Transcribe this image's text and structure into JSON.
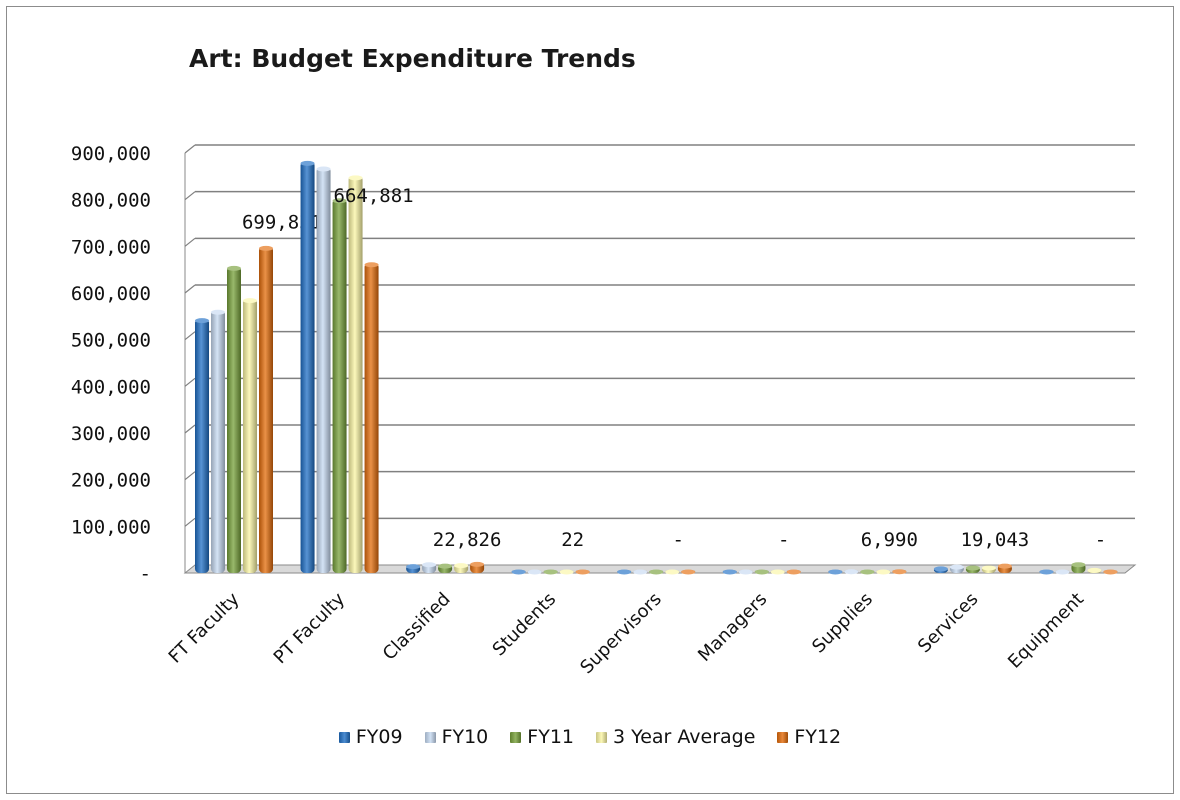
{
  "chart_data": {
    "type": "bar",
    "title": "Art: Budget Expenditure Trends",
    "categories": [
      "FT Faculty",
      "PT Faculty",
      "Classified",
      "Students",
      "Supervisors",
      "Managers",
      "Supplies",
      "Services",
      "Equipment"
    ],
    "series": [
      {
        "name": "FY09",
        "color": "#1f6fc5",
        "values": [
          545000,
          882000,
          18000,
          2000,
          1000,
          1000,
          6000,
          13000,
          3000
        ]
      },
      {
        "name": "FY10",
        "color": "#c6d9f1",
        "values": [
          563000,
          870000,
          22000,
          2000,
          1000,
          1000,
          7000,
          17000,
          4000
        ]
      },
      {
        "name": "FY11",
        "color": "#77a03a",
        "values": [
          657000,
          802000,
          19000,
          1000,
          1000,
          1000,
          6000,
          15000,
          22000
        ]
      },
      {
        "name": "3 Year Average",
        "color": "#fbf6a4",
        "values": [
          588000,
          851000,
          20000,
          2000,
          1000,
          1000,
          6000,
          15000,
          10000
        ]
      },
      {
        "name": "FY12",
        "color": "#e36c0a",
        "values": [
          699831,
          664881,
          22826,
          22,
          0,
          0,
          6990,
          19043,
          0
        ]
      }
    ],
    "data_labels": [
      "699,831",
      "664,881",
      "22,826",
      "22",
      "-",
      "-",
      "6,990",
      "19,043",
      "-"
    ],
    "yticks": [
      "-",
      "100,000",
      "200,000",
      "300,000",
      "400,000",
      "500,000",
      "600,000",
      "700,000",
      "800,000",
      "900,000"
    ],
    "ylim": [
      0,
      900000
    ],
    "grid": true,
    "legend_position": "bottom"
  }
}
